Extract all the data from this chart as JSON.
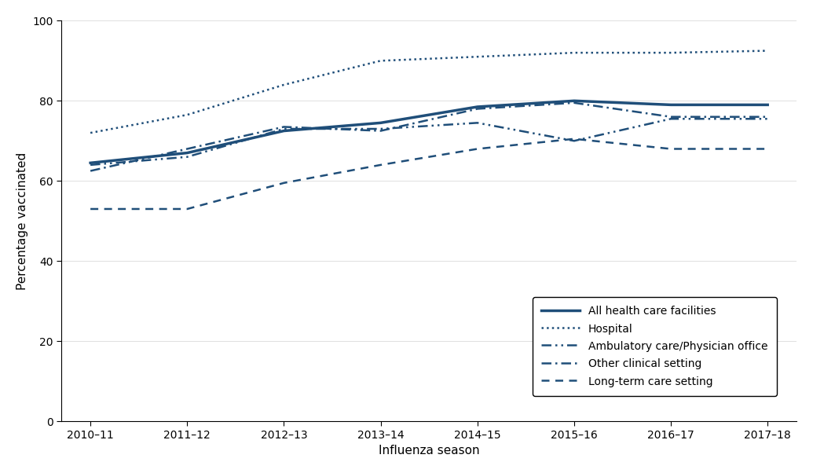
{
  "seasons": [
    "2010–11",
    "2011–12",
    "2012–13",
    "2013–14",
    "2014–15",
    "2015–16",
    "2016–17",
    "2017–18"
  ],
  "all_facilities": [
    64.5,
    67.0,
    72.5,
    74.5,
    78.5,
    80.0,
    79.0,
    79.0
  ],
  "hospital": [
    72.0,
    76.5,
    84.0,
    90.0,
    91.0,
    92.0,
    92.0,
    92.5
  ],
  "ambulatory": [
    64.0,
    66.0,
    73.0,
    73.0,
    74.5,
    70.0,
    75.5,
    75.5
  ],
  "other_clinical": [
    62.5,
    68.0,
    73.5,
    72.5,
    78.0,
    79.5,
    76.0,
    76.0
  ],
  "long_term_care": [
    53.0,
    53.0,
    59.5,
    64.0,
    68.0,
    70.5,
    68.0,
    68.0
  ],
  "line_color": "#1f4e79",
  "ylabel": "Percentage vaccinated",
  "xlabel": "Influenza season",
  "ylim": [
    0,
    100
  ],
  "yticks": [
    0,
    20,
    40,
    60,
    80,
    100
  ],
  "legend_labels": [
    "All health care facilities",
    "Hospital",
    "Ambulatory care/Physician office",
    "Other clinical setting",
    "Long-term care setting"
  ],
  "background_color": "#ffffff"
}
